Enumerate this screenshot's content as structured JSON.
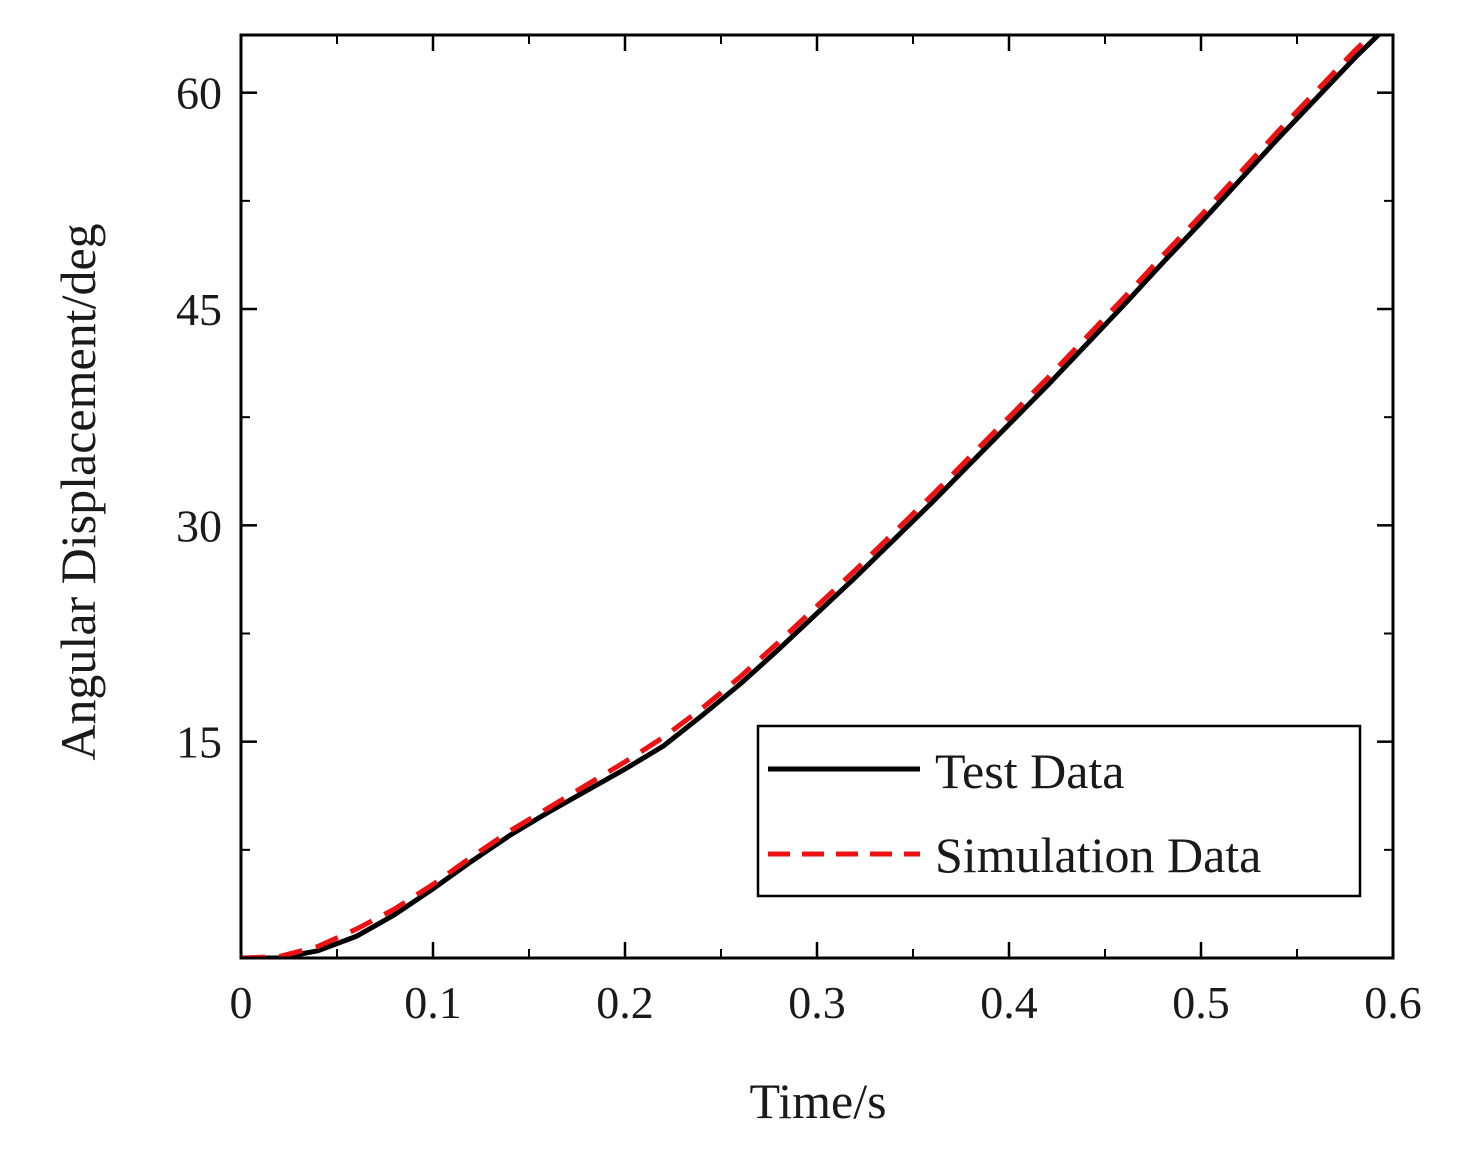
{
  "chart_data": {
    "type": "line",
    "title": "",
    "xlabel": "Time/s",
    "ylabel": "Angular Displacement/deg",
    "xlim": [
      0,
      0.6
    ],
    "ylim": [
      0,
      64
    ],
    "xticks": [
      0,
      0.1,
      0.2,
      0.3,
      0.4,
      0.5,
      0.6
    ],
    "xtick_labels": [
      "0",
      "0.1",
      "0.2",
      "0.3",
      "0.4",
      "0.5",
      "0.6"
    ],
    "yticks": [
      15,
      30,
      45,
      60
    ],
    "ytick_labels": [
      "15",
      "30",
      "45",
      "60"
    ],
    "grid": false,
    "legend_position": "bottom-right",
    "series": [
      {
        "name": "Test Data",
        "color": "#000000",
        "style": "solid",
        "x": [
          0,
          0.02,
          0.04,
          0.06,
          0.08,
          0.1,
          0.12,
          0.14,
          0.16,
          0.18,
          0.2,
          0.22,
          0.24,
          0.26,
          0.28,
          0.3,
          0.32,
          0.34,
          0.36,
          0.38,
          0.4,
          0.42,
          0.44,
          0.46,
          0.48,
          0.5,
          0.52,
          0.54,
          0.56,
          0.58,
          0.6
        ],
        "values": [
          0,
          0,
          0.5,
          1.5,
          3.0,
          4.8,
          6.7,
          8.5,
          10.1,
          11.6,
          13.1,
          14.7,
          16.8,
          19.0,
          21.4,
          23.9,
          26.4,
          29.0,
          31.6,
          34.3,
          37.0,
          39.7,
          42.5,
          45.3,
          48.2,
          51.0,
          53.9,
          56.8,
          59.6,
          62.4,
          65.0
        ]
      },
      {
        "name": "Simulation Data",
        "color": "#ee1111",
        "style": "dashed",
        "x": [
          0,
          0.02,
          0.04,
          0.06,
          0.08,
          0.1,
          0.12,
          0.14,
          0.16,
          0.18,
          0.2,
          0.22,
          0.24,
          0.26,
          0.28,
          0.3,
          0.32,
          0.34,
          0.36,
          0.38,
          0.4,
          0.42,
          0.44,
          0.46,
          0.48,
          0.5,
          0.52,
          0.54,
          0.56,
          0.58,
          0.6
        ],
        "values": [
          0,
          0.1,
          0.8,
          2.0,
          3.4,
          5.1,
          7.0,
          8.8,
          10.4,
          12.0,
          13.6,
          15.3,
          17.3,
          19.5,
          21.9,
          24.4,
          26.9,
          29.5,
          32.1,
          34.8,
          37.5,
          40.2,
          43.0,
          45.8,
          48.7,
          51.5,
          54.4,
          57.3,
          60.1,
          62.9,
          65.5
        ]
      }
    ]
  }
}
